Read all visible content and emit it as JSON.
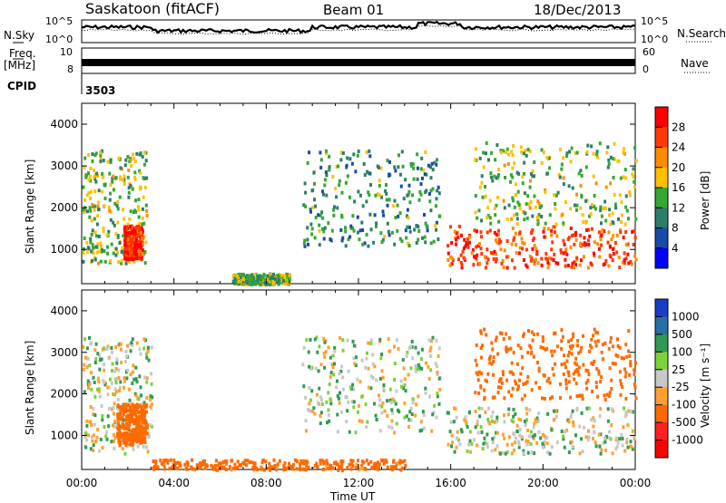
{
  "header": {
    "station": "Saskatoon (fitACF)",
    "beam": "Beam 01",
    "date": "18/Dec/2013"
  },
  "left_labels": {
    "nsky": "N.Sky",
    "freq": "Freq.",
    "freq_unit": "[MHz]",
    "cpid": "CPID",
    "cpid_value": "3503"
  },
  "right_labels": {
    "nsearch": "N.Search",
    "nave": "Nave"
  },
  "noise_axis": {
    "top": "10^5",
    "bottom": "10^0"
  },
  "freq_axis": {
    "top": "10",
    "bottom": "8"
  },
  "nave_axis": {
    "top": "60",
    "bottom": "0"
  },
  "power_panel": {
    "ylabel": "Slant Range [km]",
    "colorbar_label": "Power [dB]",
    "colorbar_ticks": [
      "28",
      "24",
      "20",
      "16",
      "12",
      "8",
      "4"
    ],
    "colorbar_colors": [
      "#ff0000",
      "#ff3a00",
      "#ff8c00",
      "#ffc000",
      "#33a833",
      "#2e7d6a",
      "#1a4aa8",
      "#0000ff"
    ]
  },
  "velocity_panel": {
    "ylabel": "Slant Range [km]",
    "colorbar_label": "Velocity [m s⁻¹]",
    "colorbar_ticks": [
      "1000",
      "500",
      "100",
      "25",
      "-25",
      "-100",
      "-500",
      "-1000"
    ],
    "colorbar_colors": [
      "#1a3cc8",
      "#2a6ea8",
      "#2e9a52",
      "#7cd23a",
      "#c8c8c8",
      "#ffa030",
      "#ff6a00",
      "#ff2020",
      "#ff0000"
    ]
  },
  "x_axis": {
    "ticks": [
      "00:00",
      "04:00",
      "08:00",
      "12:00",
      "16:00",
      "20:00",
      "00:00"
    ],
    "label": "Time UT"
  },
  "y_axis_ticks": [
    "4000",
    "3000",
    "2000",
    "1000"
  ],
  "chart_data": [
    {
      "type": "heatmap",
      "title": "Saskatoon (fitACF) Beam 01 18/Dec/2013",
      "xlabel": "Time UT",
      "ylabel": "Slant Range [km]",
      "zlabel": "Power [dB]",
      "x_range_hours": [
        0,
        24
      ],
      "ylim": [
        180,
        4500
      ],
      "zlim": [
        0,
        30
      ],
      "regions": [
        {
          "t": [
            0.0,
            2.8
          ],
          "r": [
            700,
            3400
          ],
          "power_db": 14
        },
        {
          "t": [
            1.8,
            2.6
          ],
          "r": [
            800,
            1600
          ],
          "power_db": 28
        },
        {
          "t": [
            6.5,
            9.0
          ],
          "r": [
            200,
            450
          ],
          "power_db": 12
        },
        {
          "t": [
            9.5,
            15.5
          ],
          "r": [
            1100,
            3400
          ],
          "power_db": 10
        },
        {
          "t": [
            15.8,
            24.0
          ],
          "r": [
            600,
            1600
          ],
          "power_db": 26
        },
        {
          "t": [
            17.0,
            24.0
          ],
          "r": [
            1600,
            3600
          ],
          "power_db": 14
        }
      ]
    },
    {
      "type": "heatmap",
      "title": "Saskatoon (fitACF) Beam 01 18/Dec/2013",
      "xlabel": "Time UT",
      "ylabel": "Slant Range [km]",
      "zlabel": "Velocity [m s-1]",
      "x_range_hours": [
        0,
        24
      ],
      "ylim": [
        180,
        4500
      ],
      "zlim": [
        -1000,
        1000
      ],
      "regions": [
        {
          "t": [
            0.0,
            3.0
          ],
          "r": [
            600,
            3400
          ],
          "velocity": 0
        },
        {
          "t": [
            1.5,
            2.8
          ],
          "r": [
            800,
            1800
          ],
          "velocity": -300
        },
        {
          "t": [
            3.0,
            14.0
          ],
          "r": [
            200,
            450
          ],
          "velocity": -150
        },
        {
          "t": [
            9.5,
            15.5
          ],
          "r": [
            1100,
            3400
          ],
          "velocity": 0
        },
        {
          "t": [
            15.8,
            24.0
          ],
          "r": [
            600,
            1700
          ],
          "velocity": 0
        },
        {
          "t": [
            17.0,
            24.0
          ],
          "r": [
            1900,
            3600
          ],
          "velocity": -400
        }
      ]
    }
  ]
}
